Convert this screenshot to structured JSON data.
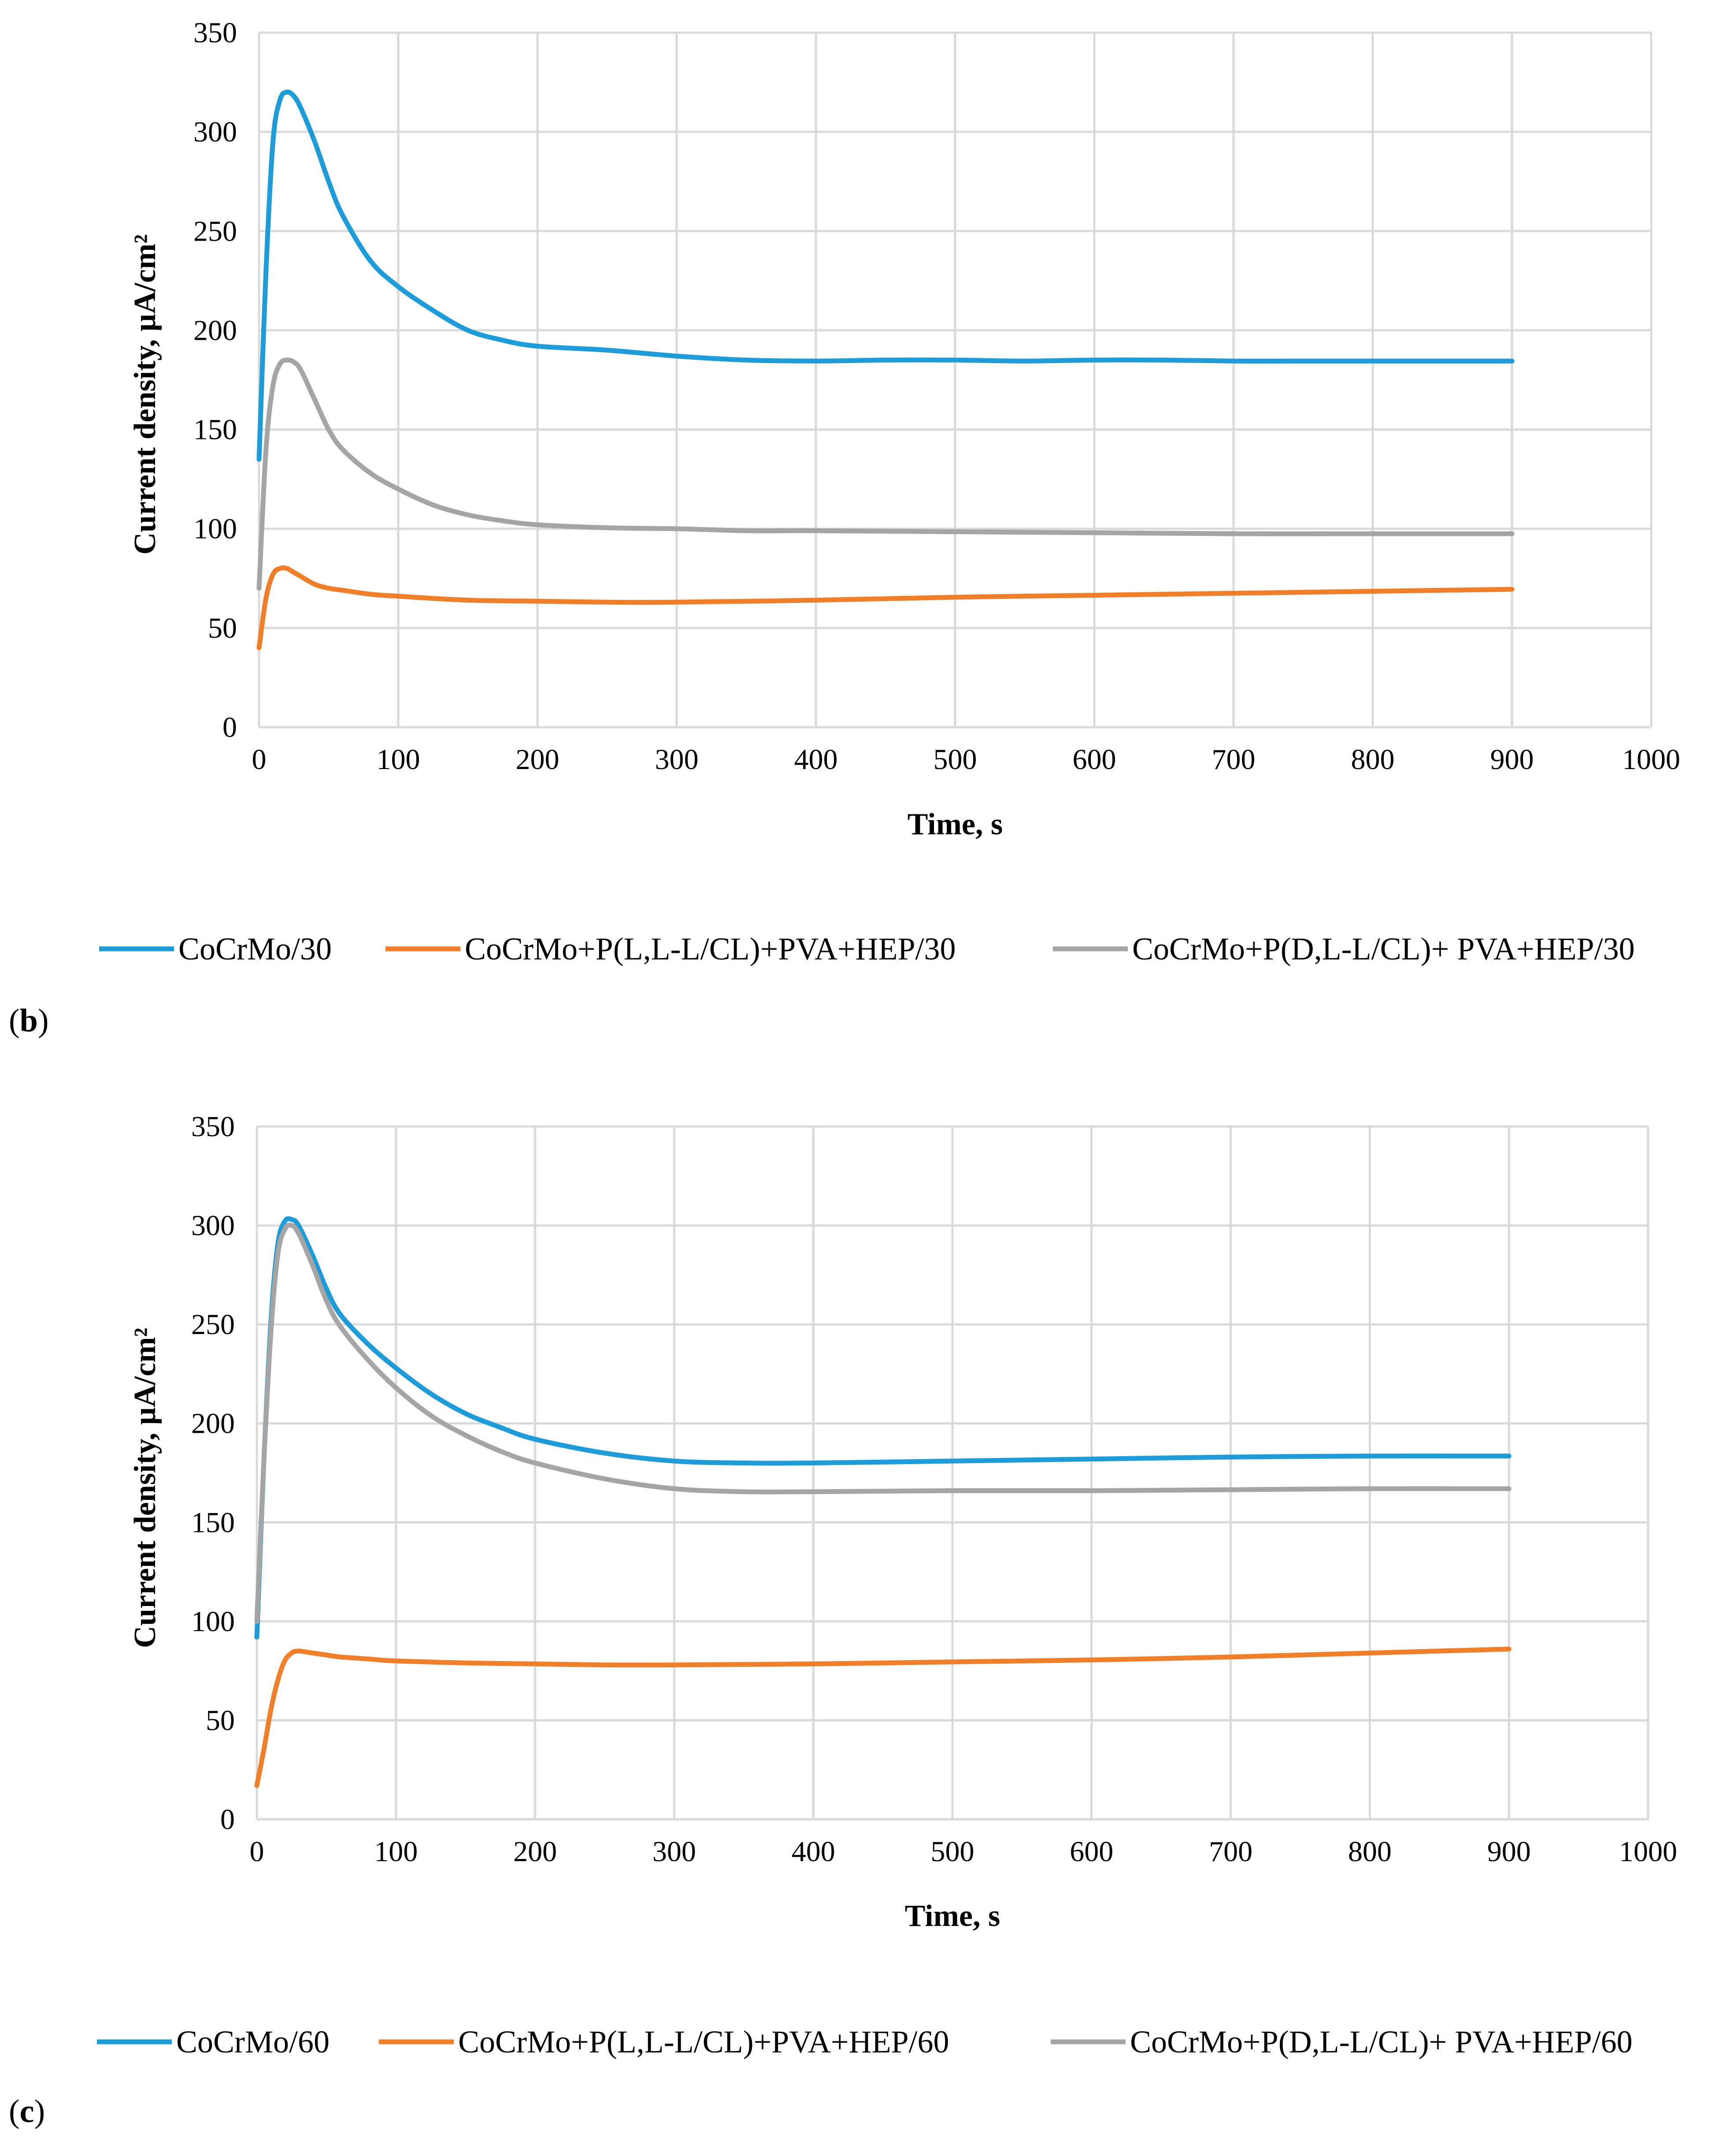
{
  "chart_data": [
    {
      "type": "line",
      "panel_label": "b",
      "xlabel": "Time, s",
      "ylabel": "Current density, µA/cm²",
      "xlim": [
        0,
        1000
      ],
      "ylim": [
        0,
        350
      ],
      "xticks": [
        "0",
        "100",
        "200",
        "300",
        "400",
        "500",
        "600",
        "700",
        "800",
        "900",
        "1000"
      ],
      "yticks": [
        "0",
        "50",
        "100",
        "150",
        "200",
        "250",
        "300",
        "350"
      ],
      "grid": true,
      "legend_position": "bottom",
      "series": [
        {
          "name": "CoCrMo/30",
          "color": "#1f9bd7",
          "x": [
            0,
            5,
            10,
            15,
            20,
            25,
            30,
            40,
            50,
            60,
            80,
            100,
            125,
            150,
            175,
            200,
            250,
            300,
            350,
            400,
            450,
            500,
            550,
            600,
            650,
            700,
            750,
            800,
            850,
            900
          ],
          "y": [
            135,
            230,
            295,
            316,
            320,
            318,
            312,
            295,
            275,
            258,
            235,
            222,
            210,
            200,
            195,
            192,
            190,
            187,
            185,
            184.5,
            185,
            185,
            184.5,
            185,
            185,
            184.5,
            184.5,
            184.5,
            184.5,
            184.5
          ]
        },
        {
          "name": "CoCrMo+P(L,L-L/CL)+PVA+HEP/30",
          "color": "#f07f2b",
          "x": [
            0,
            5,
            10,
            15,
            20,
            25,
            30,
            40,
            50,
            60,
            80,
            100,
            150,
            200,
            250,
            300,
            400,
            500,
            600,
            700,
            800,
            900
          ],
          "y": [
            40,
            65,
            77,
            80,
            80,
            78,
            76,
            72,
            70,
            69,
            67,
            66,
            64,
            63.5,
            63,
            63,
            64,
            65.5,
            66.5,
            67.5,
            68.5,
            69.5
          ]
        },
        {
          "name": "CoCrMo+P(D,L-L/CL)+ PVA+HEP/30",
          "color": "#a5a5a5",
          "x": [
            0,
            5,
            10,
            15,
            20,
            25,
            30,
            40,
            50,
            60,
            80,
            100,
            125,
            150,
            175,
            200,
            250,
            300,
            350,
            400,
            500,
            600,
            700,
            800,
            900
          ],
          "y": [
            70,
            140,
            172,
            183,
            185,
            184,
            180,
            165,
            150,
            140,
            128,
            120,
            112,
            107,
            104,
            102,
            100.5,
            100,
            99,
            99,
            98.5,
            98,
            97.5,
            97.5,
            97.5
          ]
        }
      ]
    },
    {
      "type": "line",
      "panel_label": "c",
      "xlabel": "Time, s",
      "ylabel": "Current density, µA/cm²",
      "xlim": [
        0,
        1000
      ],
      "ylim": [
        0,
        350
      ],
      "xticks": [
        "0",
        "100",
        "200",
        "300",
        "400",
        "500",
        "600",
        "700",
        "800",
        "900",
        "1000"
      ],
      "yticks": [
        "0",
        "50",
        "100",
        "150",
        "200",
        "250",
        "300",
        "350"
      ],
      "grid": true,
      "legend_position": "bottom",
      "series": [
        {
          "name": "CoCrMo/60",
          "color": "#1f9bd7",
          "x": [
            0,
            5,
            10,
            15,
            20,
            25,
            30,
            40,
            50,
            60,
            80,
            100,
            125,
            150,
            175,
            200,
            250,
            300,
            350,
            400,
            500,
            600,
            700,
            800,
            900
          ],
          "y": [
            92,
            180,
            250,
            290,
            302,
            303,
            300,
            285,
            268,
            255,
            240,
            228,
            215,
            205,
            198,
            192,
            185,
            181,
            180,
            180,
            181,
            182,
            183,
            183.5,
            183.5
          ]
        },
        {
          "name": "CoCrMo+P(L,L-L/CL)+PVA+HEP/60",
          "color": "#f07f2b",
          "x": [
            0,
            5,
            10,
            15,
            20,
            25,
            30,
            40,
            50,
            60,
            80,
            100,
            150,
            200,
            250,
            300,
            400,
            500,
            600,
            700,
            800,
            900
          ],
          "y": [
            17,
            35,
            55,
            70,
            80,
            84,
            85,
            84,
            83,
            82,
            81,
            80,
            79,
            78.5,
            78,
            78,
            78.5,
            79.5,
            80.5,
            82,
            84,
            86
          ]
        },
        {
          "name": "CoCrMo+P(D,L-L/CL)+ PVA+HEP/60",
          "color": "#a5a5a5",
          "x": [
            0,
            5,
            10,
            15,
            20,
            25,
            30,
            40,
            50,
            60,
            80,
            100,
            125,
            150,
            175,
            200,
            250,
            300,
            350,
            400,
            500,
            600,
            700,
            800,
            900
          ],
          "y": [
            100,
            180,
            245,
            285,
            298,
            300,
            296,
            280,
            262,
            249,
            232,
            218,
            204,
            194,
            186,
            180,
            172,
            167,
            165.5,
            165.5,
            166,
            166,
            166.5,
            167,
            167
          ]
        }
      ]
    }
  ]
}
